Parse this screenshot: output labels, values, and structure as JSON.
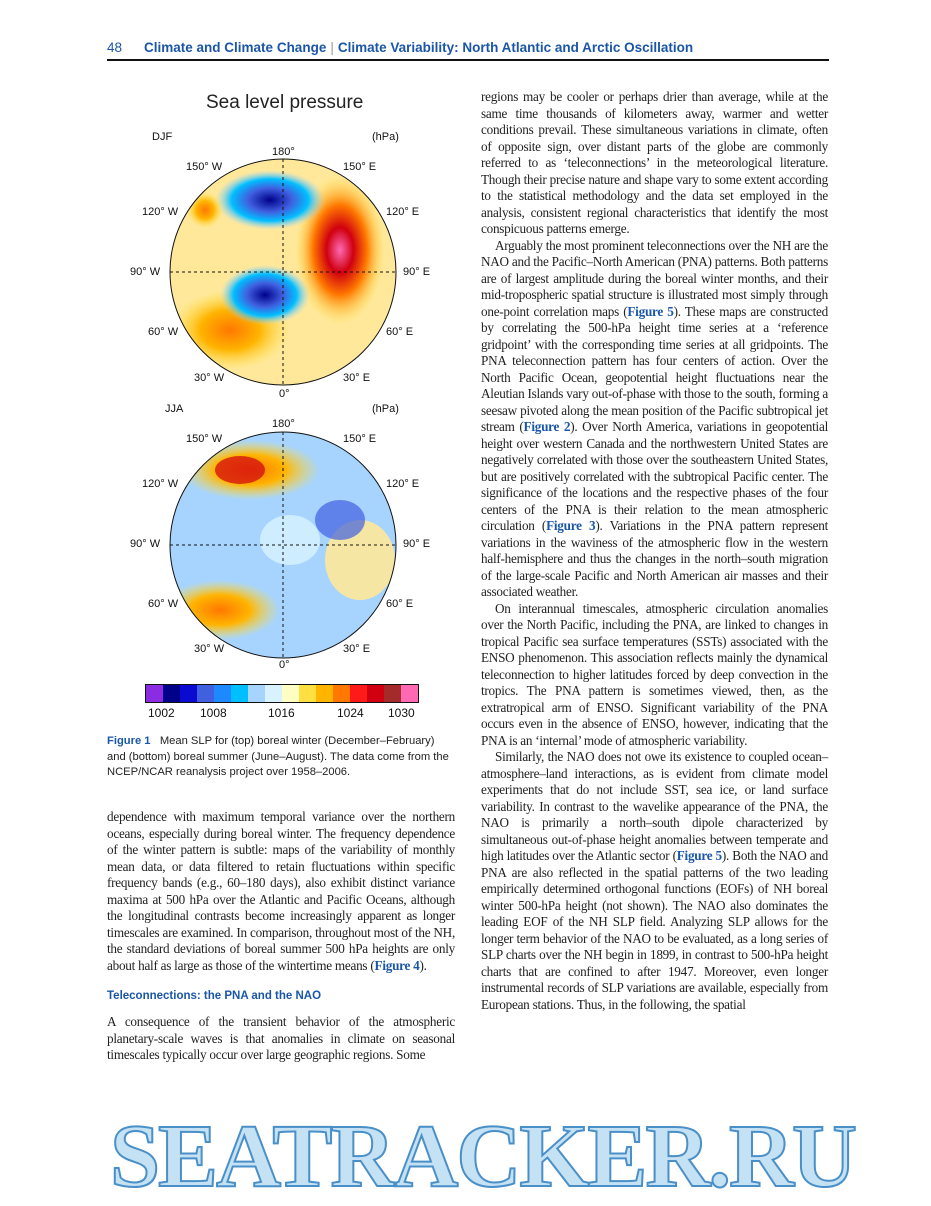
{
  "header": {
    "page_number": "48",
    "book": "Climate and Climate Change",
    "chapter": "Climate Variability: North Atlantic and Arctic Oscillation"
  },
  "figure": {
    "title": "Sea level pressure",
    "top": {
      "season": "DJF",
      "unit": "(hPa)",
      "labels": [
        "180°",
        "150° W",
        "150° E",
        "120° W",
        "120° E",
        "90° W",
        "90° E",
        "60° W",
        "60° E",
        "30° W",
        "30° E",
        "0°"
      ]
    },
    "bottom": {
      "season": "JJA",
      "unit": "(hPa)",
      "labels": [
        "180°",
        "150° W",
        "150° E",
        "120° W",
        "120° E",
        "90° W",
        "90° E",
        "60° W",
        "60° E",
        "30° W",
        "30° E",
        "0°"
      ]
    },
    "colorbar": {
      "colors": [
        "#8b2be2",
        "#00008b",
        "#0a0ad0",
        "#4060e0",
        "#1e88ff",
        "#00bfff",
        "#a6d4ff",
        "#d8f2ff",
        "#ffffc4",
        "#ffe040",
        "#ffb400",
        "#ff7800",
        "#ff1a1a",
        "#d00010",
        "#a52a2a",
        "#ff69b4"
      ],
      "tick_labels": [
        "1002",
        "1008",
        "1016",
        "1024",
        "1030"
      ]
    },
    "caption_label": "Figure 1",
    "caption": "Mean SLP for (top) boreal winter (December–February) and (bottom) boreal summer (June–August). The data come from the NCEP/NCAR reanalysis project over 1958–2006."
  },
  "left_column": {
    "p1": "dependence with maximum temporal variance over the northern oceans, especially during boreal winter. The frequency dependence of the winter pattern is subtle: maps of the variability of monthly mean data, or data filtered to retain fluctuations within specific frequency bands (e.g., 60–180 days), also exhibit distinct variance maxima at 500 hPa over the Atlantic and Pacific Oceans, although the longitudinal contrasts become increasingly apparent as longer timescales are examined. In comparison, throughout most of the NH, the standard deviations of boreal summer 500 hPa heights are only about half as large as those of the wintertime means (",
    "p1_ref": "Figure 4",
    "p1_end": ").",
    "heading": "Teleconnections: the PNA and the NAO",
    "p2": "A consequence of the transient behavior of the atmospheric planetary-scale waves is that anomalies in climate on seasonal timescales typically occur over large geographic regions. Some"
  },
  "right_column": {
    "p1": "regions may be cooler or perhaps drier than average, while at the same time thousands of kilometers away, warmer and wetter conditions prevail. These simultaneous variations in climate, often of opposite sign, over distant parts of the globe are commonly referred to as ‘teleconnections’ in the meteorological literature. Though their precise nature and shape vary to some extent according to the statistical methodology and the data set employed in the analysis, consistent regional characteristics that identify the most conspicuous patterns emerge.",
    "p2a": "Arguably the most prominent teleconnections over the NH are the NAO and the Pacific–North American (PNA) patterns. Both patterns are of largest amplitude during the boreal winter months, and their mid-tropospheric spatial structure is illustrated most simply through one-point correlation maps (",
    "p2_ref1": "Figure 5",
    "p2b": "). These maps are constructed by correlating the 500-hPa height time series at a ‘reference gridpoint’ with the corresponding time series at all gridpoints. The PNA teleconnection pattern has four centers of action. Over the North Pacific Ocean, geopotential height fluctuations near the Aleutian Islands vary out-of-phase with those to the south, forming a seesaw pivoted along the mean position of the Pacific subtropical jet stream (",
    "p2_ref2": "Figure 2",
    "p2c": "). Over North America, variations in geopotential height over western Canada and the northwestern United States are negatively correlated with those over the southeastern United States, but are positively correlated with the subtropical Pacific center. The significance of the locations and the respective phases of the four centers of the PNA is their relation to the mean atmospheric circulation (",
    "p2_ref3": "Figure 3",
    "p2d": "). Variations in the PNA pattern represent variations in the waviness of the atmospheric flow in the western half-hemisphere and thus the changes in the north–south migration of the large-scale Pacific and North American air masses and their associated weather.",
    "p3": "On interannual timescales, atmospheric circulation anomalies over the North Pacific, including the PNA, are linked to changes in tropical Pacific sea surface temperatures (SSTs) associated with the ENSO phenomenon. This association reflects mainly the dynamical teleconnection to higher latitudes forced by deep convection in the tropics. The PNA pattern is sometimes viewed, then, as the extratropical arm of ENSO. Significant variability of the PNA occurs even in the absence of ENSO, however, indicating that the PNA is an ‘internal’ mode of atmospheric variability.",
    "p4a": "Similarly, the NAO does not owe its existence to coupled ocean–atmosphere–land interactions, as is evident from climate model experiments that do not include SST, sea ice, or land surface variability. In contrast to the wavelike appearance of the PNA, the NAO is primarily a north–south dipole characterized by simultaneous out-of-phase height anomalies between temperate and high latitudes over the Atlantic sector (",
    "p4_ref": "Figure 5",
    "p4b": "). Both the NAO and PNA are also reflected in the spatial patterns of the two leading empirically determined orthogonal functions (EOFs) of NH boreal winter 500-hPa height (not shown). The NAO also dominates the leading EOF of the NH SLP field. Analyzing SLP allows for the longer term behavior of the NAO to be evaluated, as a long series of SLP charts over the NH begin in 1899, in contrast to 500-hPa height charts that are confined to after 1947. Moreover, even longer instrumental records of SLP variations are available, especially from European stations. Thus, in the following, the spatial"
  },
  "watermark": "SEATRACKER.RU"
}
